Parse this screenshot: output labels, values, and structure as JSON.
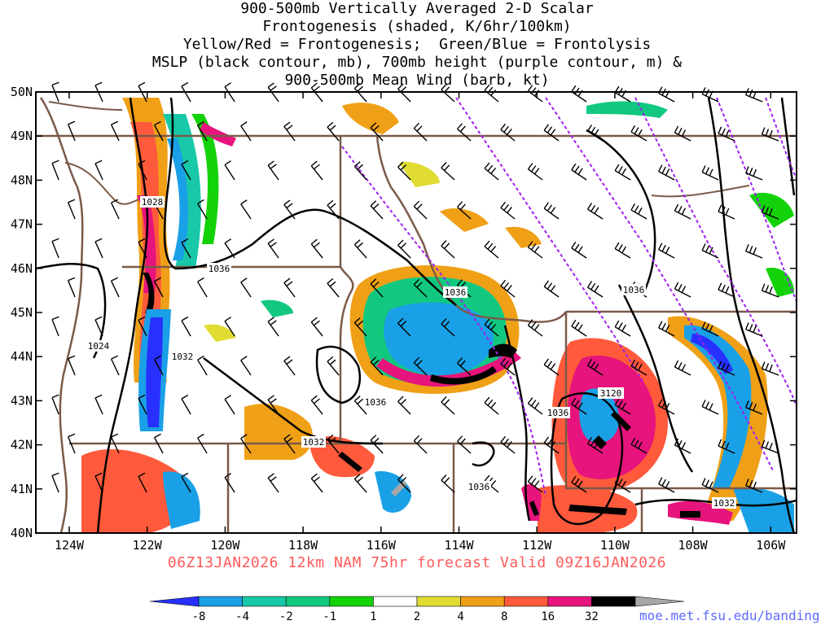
{
  "title_lines": [
    "900-500mb Vertically Averaged 2-D Scalar",
    "Frontogenesis (shaded, K/6hr/100km)",
    "Yellow/Red = Frontogenesis;  Green/Blue = Frontolysis",
    "MSLP (black contour, mb), 700mb height (purple contour, m) &",
    "900-500mb Mean Wind (barb, kt)"
  ],
  "footer": "06Z13JAN2026 12km NAM 75hr forecast Valid 09Z16JAN2026",
  "credit": "moe.met.fsu.edu/banding",
  "lat_labels": [
    "50N",
    "49N",
    "48N",
    "47N",
    "46N",
    "45N",
    "44N",
    "43N",
    "42N",
    "41N",
    "40N"
  ],
  "lon_labels": [
    "124W",
    "122W",
    "120W",
    "118W",
    "116W",
    "114W",
    "112W",
    "110W",
    "108W",
    "106W"
  ],
  "contour_labels": [
    "1028",
    "1036",
    "1024",
    "1032",
    "1036",
    "1036",
    "1032",
    "1036",
    "3120",
    "1036",
    "1036",
    "1032"
  ],
  "colorbar": {
    "labels": [
      "-8",
      "-4",
      "-2",
      "-1",
      "1",
      "2",
      "4",
      "8",
      "16",
      "32"
    ],
    "colors": [
      "#2830ff",
      "#1aa0e6",
      "#18c8a8",
      "#12c880",
      "#14d20a",
      "#ffffff",
      "#e0dc32",
      "#f0a016",
      "#ff5a3c",
      "#e6147c",
      "#000000",
      "#a8a8a8"
    ]
  },
  "colors": {
    "mslp": "#000000",
    "height700": "#a020f0",
    "borders": "#7a5a48",
    "footer": "#ff5a5a",
    "credit": "#5d6bff"
  }
}
